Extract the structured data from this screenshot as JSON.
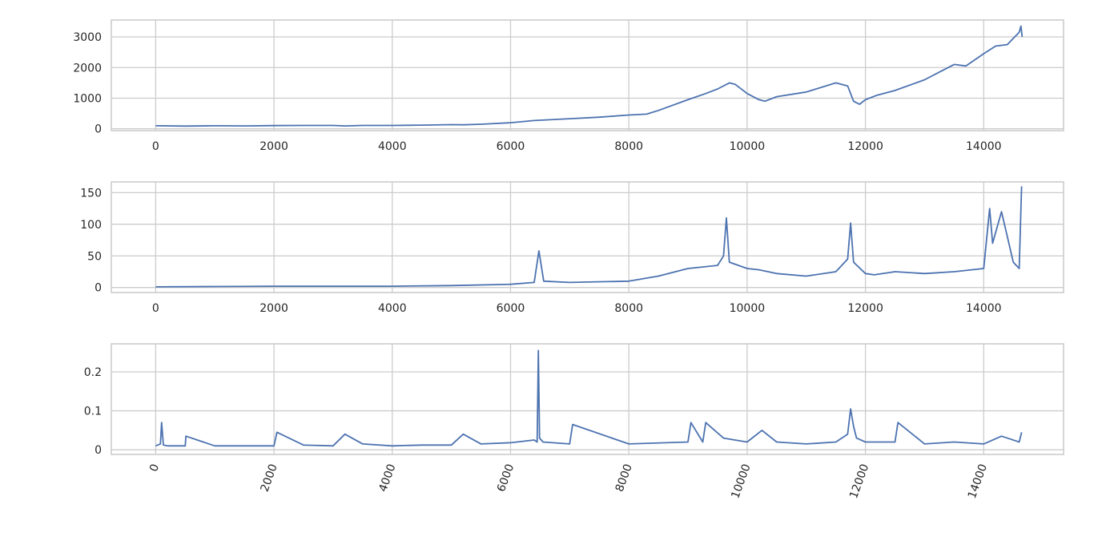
{
  "chart_data": [
    {
      "type": "line",
      "title": "",
      "xlabel": "",
      "ylabel": "",
      "xlim": [
        -750,
        15350
      ],
      "ylim": [
        -60,
        3550
      ],
      "x_ticks": [
        0,
        2000,
        4000,
        6000,
        8000,
        10000,
        12000,
        14000
      ],
      "y_ticks": [
        0,
        1000,
        2000,
        3000
      ],
      "grid": true,
      "series": [
        {
          "x": [
            0,
            500,
            1000,
            1500,
            2000,
            2500,
            3000,
            3200,
            3500,
            4000,
            4500,
            5000,
            5200,
            5500,
            6000,
            6400,
            6500,
            7000,
            7500,
            8000,
            8300,
            8500,
            9000,
            9300,
            9500,
            9700,
            9800,
            10000,
            10200,
            10300,
            10500,
            11000,
            11500,
            11700,
            11800,
            11900,
            12000,
            12200,
            12500,
            13000,
            13300,
            13500,
            13700,
            14000,
            14200,
            14400,
            14500,
            14600,
            14630,
            14650
          ],
          "y": [
            100,
            90,
            100,
            95,
            105,
            110,
            110,
            95,
            110,
            110,
            120,
            135,
            130,
            150,
            200,
            270,
            280,
            330,
            380,
            450,
            480,
            600,
            950,
            1150,
            1300,
            1500,
            1450,
            1150,
            950,
            900,
            1050,
            1200,
            1500,
            1400,
            900,
            800,
            950,
            1100,
            1250,
            1600,
            1900,
            2100,
            2050,
            2450,
            2700,
            2750,
            2950,
            3150,
            3350,
            3000
          ]
        }
      ]
    },
    {
      "type": "line",
      "title": "",
      "xlabel": "",
      "ylabel": "",
      "xlim": [
        -750,
        15350
      ],
      "ylim": [
        -8,
        167
      ],
      "x_ticks": [
        0,
        2000,
        4000,
        6000,
        8000,
        10000,
        12000,
        14000
      ],
      "y_ticks": [
        0,
        50,
        100,
        150
      ],
      "grid": true,
      "series": [
        {
          "x": [
            0,
            1000,
            2000,
            3000,
            4000,
            5000,
            6000,
            6400,
            6480,
            6560,
            7000,
            8000,
            8500,
            9000,
            9200,
            9500,
            9600,
            9650,
            9700,
            10000,
            10200,
            10500,
            11000,
            11500,
            11700,
            11750,
            11800,
            12000,
            12150,
            12500,
            13000,
            13500,
            14000,
            14100,
            14150,
            14300,
            14500,
            14600,
            14640
          ],
          "y": [
            1,
            1.5,
            2,
            2,
            2,
            3,
            5,
            8,
            58,
            10,
            8,
            10,
            18,
            30,
            32,
            35,
            50,
            110,
            40,
            30,
            28,
            22,
            18,
            25,
            45,
            102,
            40,
            22,
            20,
            25,
            22,
            25,
            30,
            125,
            70,
            120,
            40,
            30,
            160
          ]
        }
      ]
    },
    {
      "type": "line",
      "title": "",
      "xlabel": "",
      "ylabel": "",
      "xlim": [
        -750,
        15350
      ],
      "ylim": [
        -0.012,
        0.272
      ],
      "x_ticks": [
        0,
        2000,
        4000,
        6000,
        8000,
        10000,
        12000,
        14000
      ],
      "x_tick_rotation": 70,
      "y_ticks": [
        0.0,
        0.1,
        0.2
      ],
      "grid": true,
      "series": [
        {
          "x": [
            0,
            80,
            100,
            130,
            200,
            500,
            510,
            1000,
            2000,
            2050,
            2500,
            3000,
            3200,
            3500,
            4000,
            4500,
            5000,
            5200,
            5500,
            6000,
            6400,
            6450,
            6470,
            6490,
            6550,
            7000,
            7050,
            8000,
            9000,
            9050,
            9250,
            9300,
            9600,
            10000,
            10250,
            10500,
            11000,
            11500,
            11700,
            11750,
            11800,
            11850,
            12000,
            12500,
            12550,
            13000,
            13500,
            14000,
            14300,
            14600,
            14640
          ],
          "y": [
            0.01,
            0.015,
            0.07,
            0.012,
            0.01,
            0.01,
            0.035,
            0.01,
            0.01,
            0.045,
            0.012,
            0.01,
            0.04,
            0.015,
            0.01,
            0.012,
            0.012,
            0.04,
            0.015,
            0.018,
            0.025,
            0.02,
            0.255,
            0.03,
            0.02,
            0.015,
            0.065,
            0.015,
            0.02,
            0.07,
            0.02,
            0.07,
            0.03,
            0.02,
            0.05,
            0.02,
            0.015,
            0.02,
            0.04,
            0.105,
            0.06,
            0.03,
            0.02,
            0.02,
            0.07,
            0.015,
            0.02,
            0.015,
            0.035,
            0.02,
            0.045
          ]
        }
      ]
    }
  ]
}
